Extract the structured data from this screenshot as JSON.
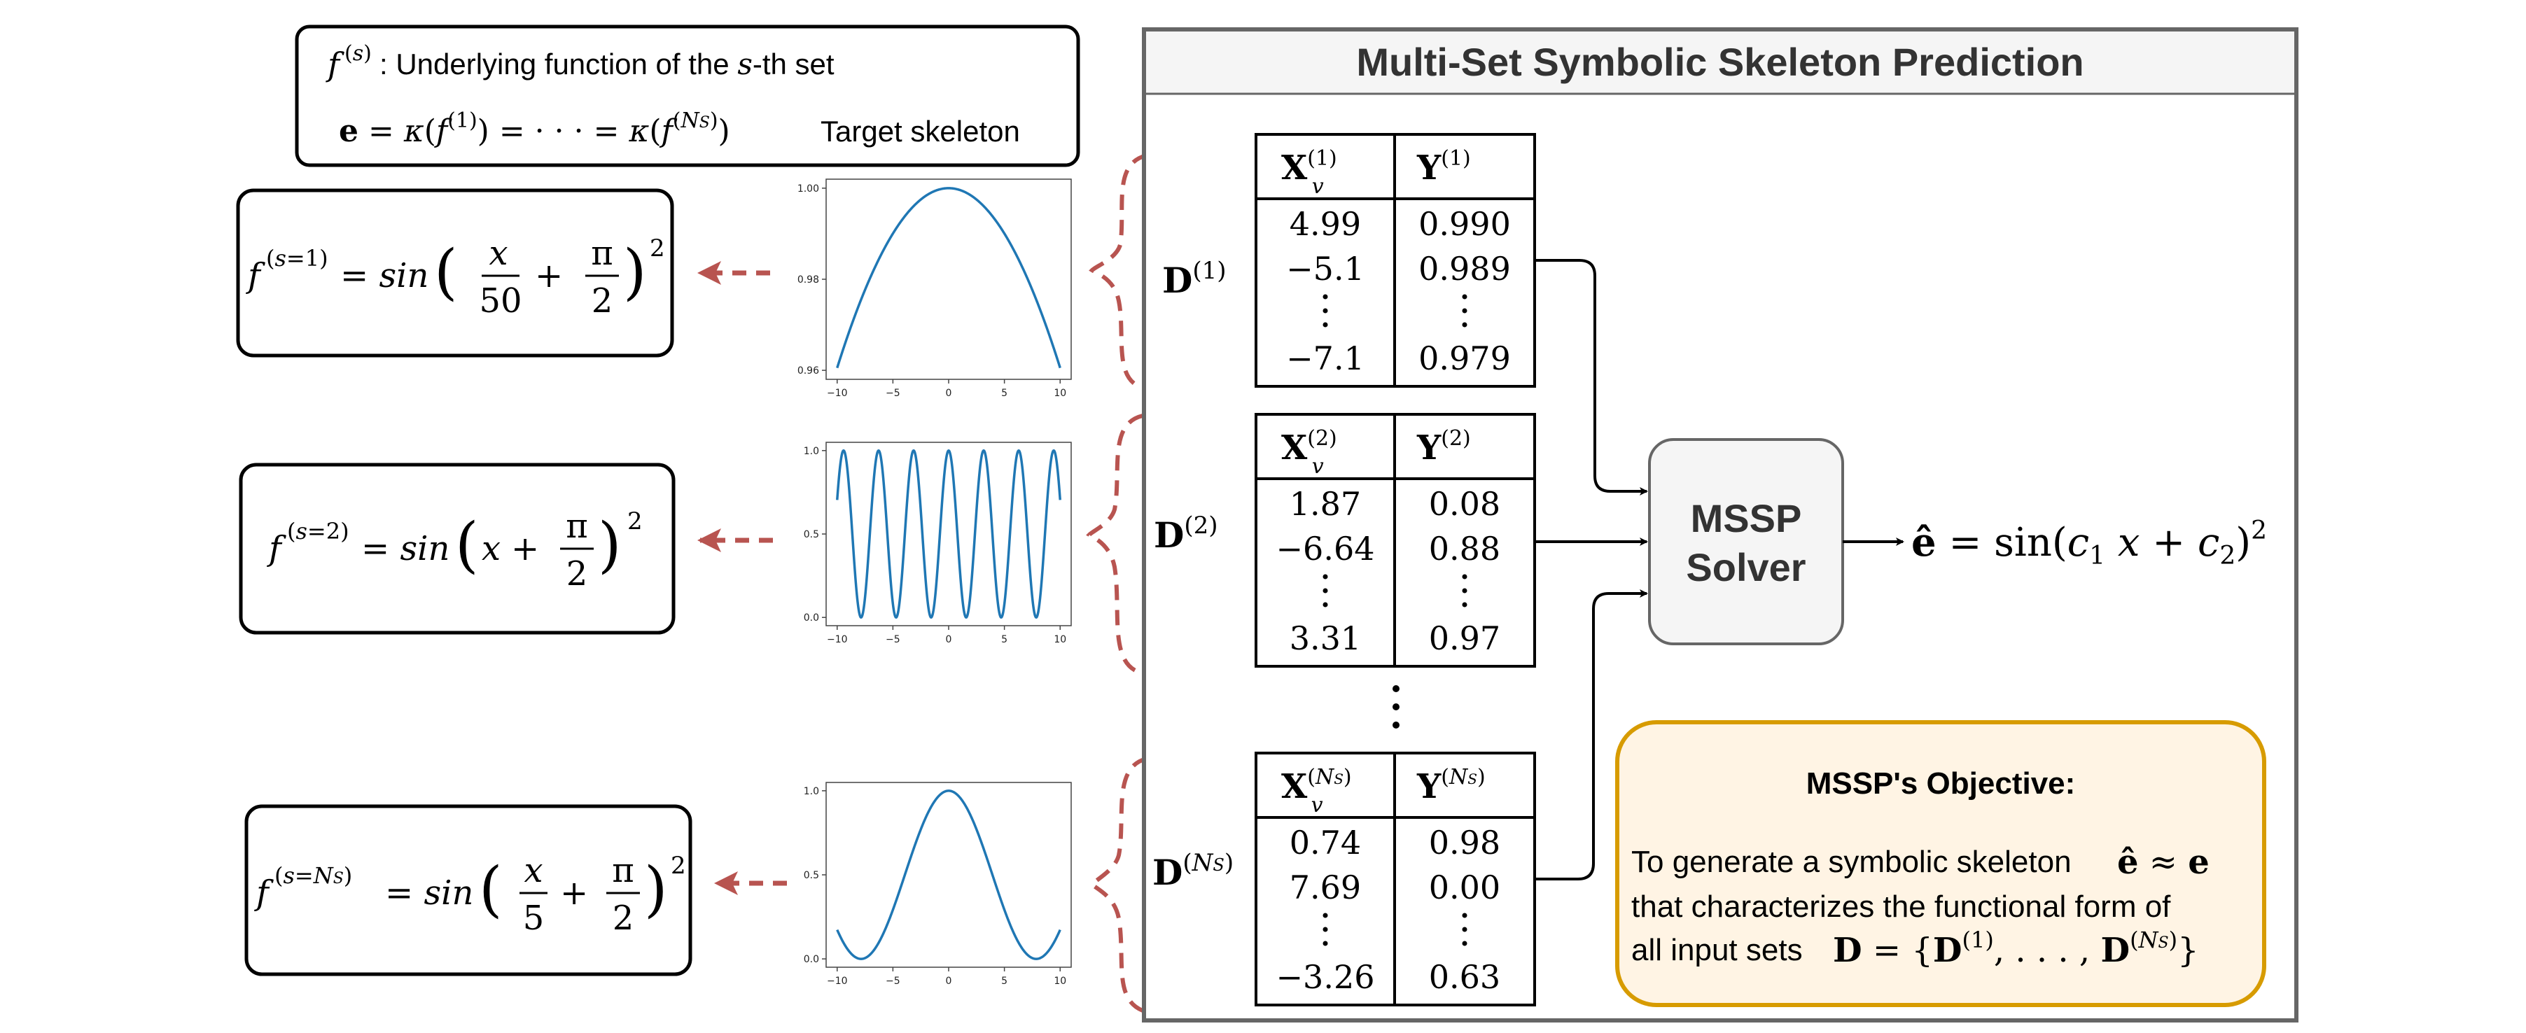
{
  "legend": {
    "line1_tail": ": Underlying function of the ",
    "line1_s": "s",
    "line1_end": "-th set",
    "line2_tail": "Target skeleton"
  },
  "panel": {
    "title": "Multi-Set Symbolic Skeleton Prediction"
  },
  "functions": [
    {
      "label": "f^(s=1) = sin(x/50 + π/2)^2"
    },
    {
      "label": "f^(s=2) = sin(x + π/2)^2"
    },
    {
      "label": "f^(s=N_S) = sin(x/5 + π/2)^2"
    }
  ],
  "plots": [
    {
      "xticks": [
        "−10",
        "−5",
        "0",
        "5",
        "10"
      ],
      "yticks": [
        "1.00",
        "0.98",
        "0.96"
      ],
      "color": "#1f77b4"
    },
    {
      "xticks": [
        "−10",
        "−5",
        "0",
        "5",
        "10"
      ],
      "yticks": [
        "1.0",
        "0.5",
        "0.0"
      ],
      "color": "#1f77b4"
    },
    {
      "xticks": [
        "−10",
        "−5",
        "0",
        "5",
        "10"
      ],
      "yticks": [
        "1.0",
        "0.5",
        "0.0"
      ],
      "color": "#1f77b4"
    }
  ],
  "tables": [
    {
      "x_values": [
        "4.99",
        "−5.1",
        "−7.1"
      ],
      "y_values": [
        "0.990",
        "0.989",
        "0.979"
      ]
    },
    {
      "x_values": [
        "1.87",
        "−6.64",
        "3.31"
      ],
      "y_values": [
        "0.08",
        "0.88",
        "0.97"
      ]
    },
    {
      "x_values": [
        "0.74",
        "7.69",
        "−3.26"
      ],
      "y_values": [
        "0.98",
        "0.00",
        "0.63"
      ]
    }
  ],
  "solver": {
    "line1": "MSSP",
    "line2": "Solver"
  },
  "objective": {
    "title": "MSSP's Objective:",
    "line1": "To generate a symbolic skeleton",
    "line2": "that characterizes the functional form of",
    "line3": "all input sets"
  },
  "colors": {
    "dashed_arrow": "#b85450",
    "panel_border": "#666666",
    "objective_border": "#d79b00",
    "objective_fill": "#fff4e4",
    "solver_fill": "#f5f5f5"
  }
}
